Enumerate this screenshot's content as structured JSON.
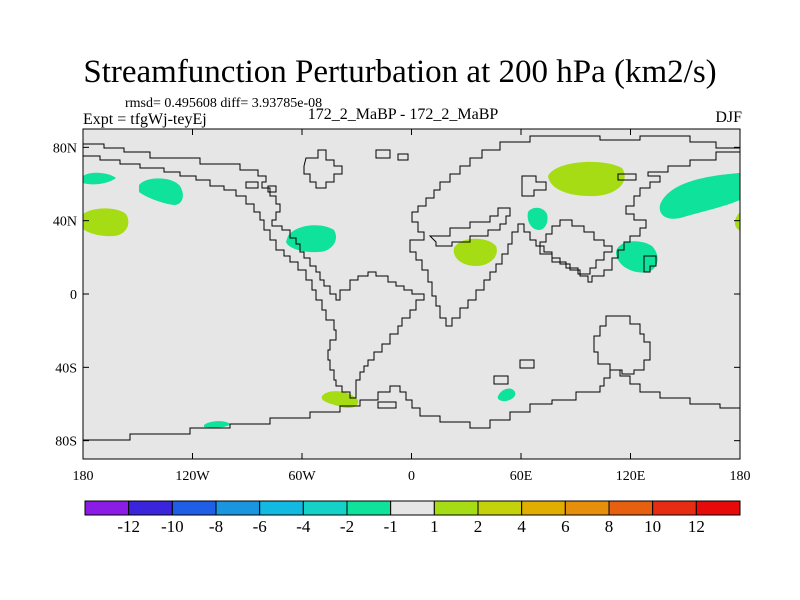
{
  "header": {
    "title": "Streamfunction Perturbation at 200 hPa (km2/s)",
    "stats": "rmsd= 0.495608 diff= 3.93785e-08",
    "experiment": "Expt = tfgWj-teyEj",
    "run": "172_2_MaBP - 172_2_MaBP",
    "season": "DJF"
  },
  "chart_data": {
    "type": "heatmap",
    "title": "Streamfunction Perturbation at 200 hPa (km2/s)",
    "projection": "cylindrical-equidistant",
    "xlim": [
      -180,
      180
    ],
    "ylim": [
      -90,
      90
    ],
    "x_ticks": [
      {
        "value": -180,
        "label": "180"
      },
      {
        "value": -120,
        "label": "120W"
      },
      {
        "value": -60,
        "label": "60W"
      },
      {
        "value": 0,
        "label": "0"
      },
      {
        "value": 60,
        "label": "60E"
      },
      {
        "value": 120,
        "label": "120E"
      },
      {
        "value": 180,
        "label": "180"
      }
    ],
    "y_ticks": [
      {
        "value": 80,
        "label": "80N"
      },
      {
        "value": 40,
        "label": "40N"
      },
      {
        "value": 0,
        "label": "0"
      },
      {
        "value": -40,
        "label": "40S"
      },
      {
        "value": -80,
        "label": "80S"
      }
    ],
    "background_level": "-1 to 1",
    "contour_levels": [
      -12,
      -10,
      -8,
      -6,
      -4,
      -2,
      -1,
      1,
      2,
      4,
      6,
      8,
      10,
      12
    ],
    "colorbar_labels": [
      "-12",
      "-10",
      "-8",
      "-6",
      "-4",
      "-2",
      "-1",
      "1",
      "2",
      "4",
      "6",
      "8",
      "10",
      "12"
    ],
    "colorbar_colors": [
      "#8a1ce6",
      "#3b25dc",
      "#1f5ee6",
      "#1a96e0",
      "#12b9e0",
      "#14d2c8",
      "#0fe29a",
      "#e6e6e6",
      "#a6dc14",
      "#c3d20a",
      "#e0ad00",
      "#e68f0a",
      "#e6600f",
      "#e62d14",
      "#e60a0a"
    ],
    "anomalies": [
      {
        "region": "North Pacific",
        "lon": -172,
        "lat": 63,
        "class": "-2 to -1"
      },
      {
        "region": "North Pacific",
        "lon": -138,
        "lat": 57,
        "class": "-2 to -1"
      },
      {
        "region": "Central Pacific",
        "lon": -168,
        "lat": 40,
        "class": "1 to 2"
      },
      {
        "region": "Eastern North America",
        "lon": -55,
        "lat": 30,
        "class": "-2 to -1"
      },
      {
        "region": "North Africa / Middle East",
        "lon": 35,
        "lat": 23,
        "class": "1 to 2"
      },
      {
        "region": "Arabian Sea",
        "lon": 67,
        "lat": 40,
        "class": "-2 to -1"
      },
      {
        "region": "Siberia",
        "lon": 100,
        "lat": 62,
        "class": "1 to 2"
      },
      {
        "region": "North Pacific",
        "lon": 160,
        "lat": 53,
        "class": "-2 to -1"
      },
      {
        "region": "Western Pacific",
        "lon": 125,
        "lat": 20,
        "class": "-2 to -1"
      },
      {
        "region": "Central Pacific",
        "lon": 180,
        "lat": 40,
        "class": "1 to 2"
      },
      {
        "region": "South Atlantic",
        "lon": -36,
        "lat": -57,
        "class": "1 to 2"
      },
      {
        "region": "Southern Ocean",
        "lon": 52,
        "lat": -55,
        "class": "-2 to -1"
      },
      {
        "region": "South Pacific",
        "lon": -104,
        "lat": -71,
        "class": "-2 to -1"
      }
    ]
  }
}
